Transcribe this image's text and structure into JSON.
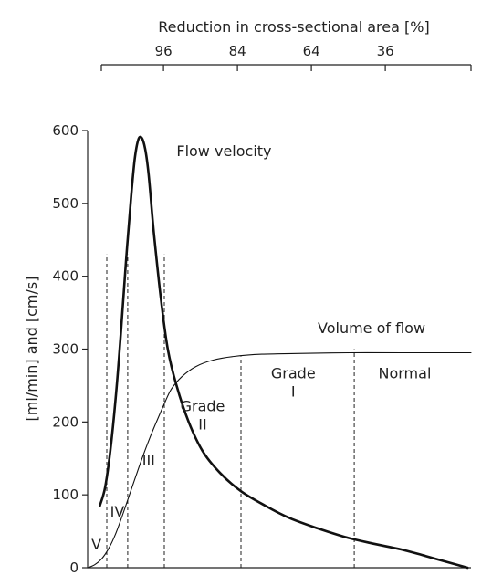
{
  "chart_data": {
    "type": "line",
    "top_axis": {
      "title": "Reduction in cross-sectional area [%]",
      "ticks": [
        {
          "label": "96",
          "x": 18.5
        },
        {
          "label": "84",
          "x": 40.5
        },
        {
          "label": "64",
          "x": 62.5
        },
        {
          "label": "36",
          "x": 84.5
        }
      ],
      "xlim": [
        0,
        110
      ]
    },
    "ylabel": "[ml/min] and [cm/s]",
    "ylim": [
      0,
      600
    ],
    "yticks": [
      {
        "label": "0",
        "value": 0
      },
      {
        "label": "100",
        "value": 100
      },
      {
        "label": "200",
        "value": 200
      },
      {
        "label": "300",
        "value": 300
      },
      {
        "label": "400",
        "value": 400
      },
      {
        "label": "500",
        "value": 500
      },
      {
        "label": "600",
        "value": 600
      }
    ],
    "xlim": [
      0,
      110
    ],
    "series": [
      {
        "name": "Flow velocity",
        "style": "thick",
        "points": [
          [
            3.5,
            85
          ],
          [
            5,
            110
          ],
          [
            6.5,
            160
          ],
          [
            8,
            230
          ],
          [
            9.5,
            320
          ],
          [
            11,
            420
          ],
          [
            12.5,
            510
          ],
          [
            13.5,
            560
          ],
          [
            14.5,
            587
          ],
          [
            15.5,
            590
          ],
          [
            16.5,
            575
          ],
          [
            17.5,
            540
          ],
          [
            19,
            460
          ],
          [
            21,
            370
          ],
          [
            23,
            300
          ],
          [
            25.5,
            250
          ],
          [
            29,
            200
          ],
          [
            33,
            160
          ],
          [
            38,
            130
          ],
          [
            44,
            105
          ],
          [
            51,
            85
          ],
          [
            58,
            68
          ],
          [
            66,
            54
          ],
          [
            74,
            42
          ],
          [
            82,
            33
          ],
          [
            90,
            25
          ],
          [
            97,
            16
          ],
          [
            103,
            8
          ],
          [
            109,
            0
          ]
        ]
      },
      {
        "name": "Volume of flow",
        "style": "thin",
        "points": [
          [
            0,
            0
          ],
          [
            2,
            4
          ],
          [
            4,
            12
          ],
          [
            6,
            26
          ],
          [
            8,
            46
          ],
          [
            10,
            72
          ],
          [
            12,
            100
          ],
          [
            14,
            128
          ],
          [
            16,
            155
          ],
          [
            18,
            180
          ],
          [
            20,
            203
          ],
          [
            22,
            225
          ],
          [
            24,
            245
          ],
          [
            27,
            262
          ],
          [
            31,
            276
          ],
          [
            36,
            285
          ],
          [
            42,
            290
          ],
          [
            50,
            293
          ],
          [
            60,
            294
          ],
          [
            75,
            295
          ],
          [
            90,
            295
          ],
          [
            100,
            295
          ],
          [
            110,
            295
          ]
        ]
      }
    ],
    "dividers": [
      {
        "x": 5.5
      },
      {
        "x": 11.5
      },
      {
        "x": 22
      },
      {
        "x": 44
      },
      {
        "x": 76.5
      }
    ],
    "region_labels": [
      {
        "text": "V",
        "x": 2.5,
        "y": 25
      },
      {
        "text": "IV",
        "x": 8.5,
        "y": 70
      },
      {
        "text": "III",
        "x": 17.5,
        "y": 140
      },
      {
        "text": "Grade",
        "x": 33,
        "y": 215
      },
      {
        "text": "II",
        "x": 33,
        "y": 190
      },
      {
        "text": "Grade",
        "x": 59,
        "y": 260
      },
      {
        "text": "I",
        "x": 59,
        "y": 235
      },
      {
        "text": "Normal",
        "x": 91,
        "y": 260
      }
    ],
    "annotations": [
      {
        "text": "Flow velocity",
        "x": 25.5,
        "y": 565
      },
      {
        "text": "Volume of flow",
        "x": 66,
        "y": 322
      }
    ]
  }
}
